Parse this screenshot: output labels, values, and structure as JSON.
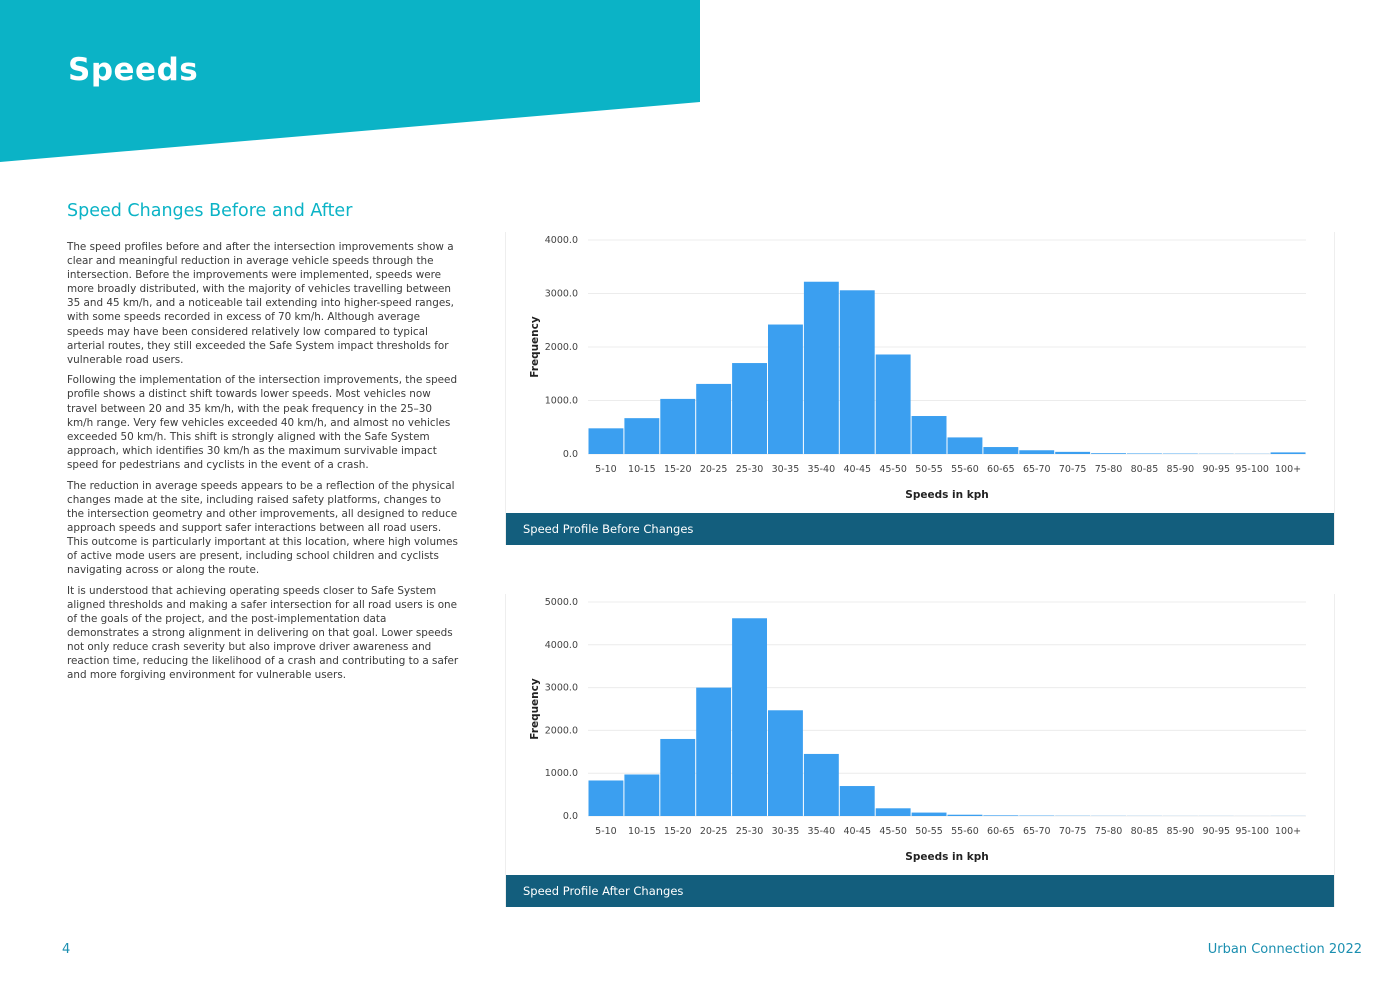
{
  "header": {
    "title": "Speeds",
    "banner_color": "#0bb3c6"
  },
  "section": {
    "heading": "Speed Changes Before and After",
    "paragraphs": [
      "The speed profiles before and after the intersection improvements show a clear and meaningful reduction in average vehicle speeds through the intersection. Before the improvements were implemented, speeds were more broadly distributed, with the majority of vehicles travelling between 35 and 45 km/h, and a noticeable tail extending into higher-speed ranges, with some speeds recorded in excess of 70 km/h. Although average speeds may have been considered relatively low compared to typical arterial routes, they still exceeded the Safe System impact thresholds for vulnerable road users.",
      "Following the implementation of the intersection improvements, the speed profile shows a distinct shift towards lower speeds. Most vehicles now travel between 20 and 35 km/h, with the peak frequency in the 25–30 km/h range. Very few vehicles exceeded 40 km/h, and almost no vehicles exceeded 50 km/h. This shift is strongly aligned with the Safe System approach, which identifies 30 km/h as the maximum survivable impact speed for pedestrians and cyclists in the event of a crash.",
      "The reduction in average speeds appears to be a reflection of the physical changes made at the site, including raised safety platforms, changes to the intersection geometry and other improvements, all designed to reduce approach speeds and support safer interactions between all road users. This outcome is particularly important at this location, where high volumes of active mode users are present, including school children and cyclists navigating across or along the route.",
      "It is understood that achieving operating speeds closer to Safe System aligned thresholds and making a safer intersection for all road users is one of the goals of the project, and the post-implementation data demonstrates a strong alignment in delivering on that goal. Lower speeds not only reduce crash severity but also improve driver awareness and reaction time, reducing the likelihood of a crash and contributing to a safer and more forgiving environment for vulnerable users."
    ]
  },
  "chart_data": [
    {
      "type": "bar",
      "caption": "Speed Profile Before Changes",
      "categories": [
        "5-10",
        "10-15",
        "15-20",
        "20-25",
        "25-30",
        "30-35",
        "35-40",
        "40-45",
        "45-50",
        "50-55",
        "55-60",
        "60-65",
        "65-70",
        "70-75",
        "75-80",
        "80-85",
        "85-90",
        "90-95",
        "95-100",
        "100+"
      ],
      "values": [
        480,
        670,
        1030,
        1310,
        1700,
        2420,
        3220,
        3060,
        1860,
        710,
        310,
        130,
        70,
        40,
        15,
        10,
        8,
        5,
        4,
        30
      ],
      "xlabel": "Speeds in kph",
      "ylabel": "Frequency",
      "ylim": [
        0,
        4000
      ],
      "yticks": [
        "0.0",
        "1000.0",
        "2000.0",
        "3000.0",
        "4000.0"
      ],
      "grid": true,
      "bar_color": "#3b9ff0"
    },
    {
      "type": "bar",
      "caption": "Speed Profile After Changes",
      "categories": [
        "5-10",
        "10-15",
        "15-20",
        "20-25",
        "25-30",
        "30-35",
        "35-40",
        "40-45",
        "45-50",
        "50-55",
        "55-60",
        "60-65",
        "65-70",
        "70-75",
        "75-80",
        "80-85",
        "85-90",
        "90-95",
        "95-100",
        "100+"
      ],
      "values": [
        830,
        970,
        1800,
        3000,
        4620,
        2470,
        1450,
        700,
        180,
        80,
        30,
        15,
        10,
        6,
        4,
        3,
        2,
        2,
        1,
        2
      ],
      "xlabel": "Speeds in kph",
      "ylabel": "Frequency",
      "ylim": [
        0,
        5000
      ],
      "yticks": [
        "0.0",
        "1000.0",
        "2000.0",
        "3000.0",
        "4000.0",
        "5000.0"
      ],
      "grid": true,
      "bar_color": "#3b9ff0"
    }
  ],
  "footer": {
    "page_number": "4",
    "brand": "Urban Connection 2022"
  }
}
